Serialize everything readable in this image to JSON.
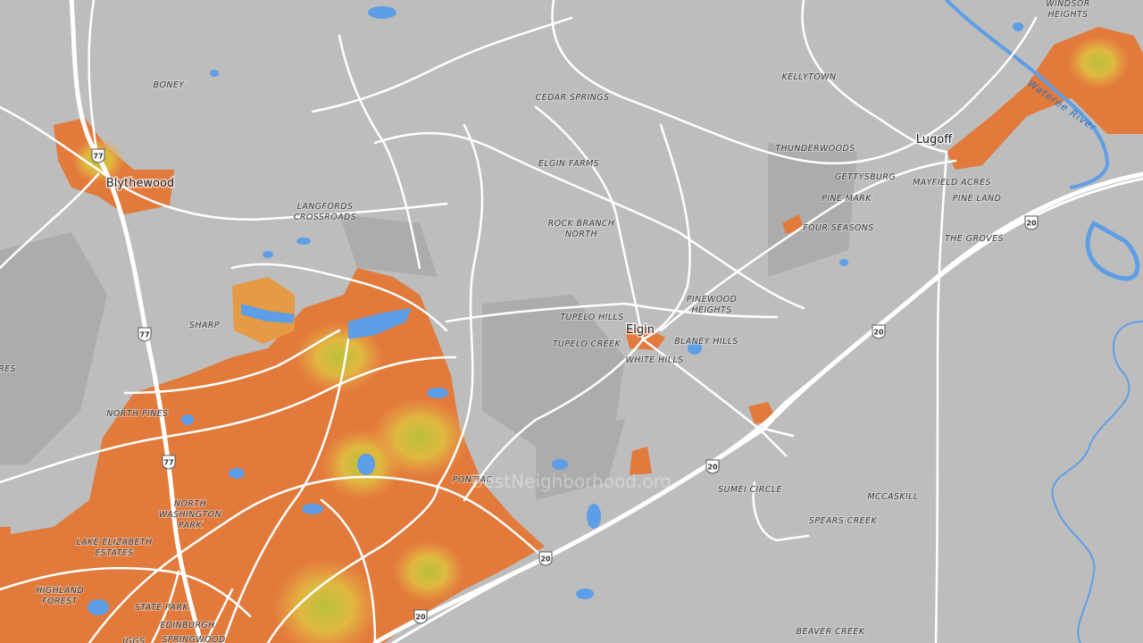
{
  "places": [
    [
      "BONEY"
    ],
    [
      "LANGFORDS",
      "CROSSROADS"
    ],
    [
      "CEDAR SPRINGS"
    ],
    [
      "ELGIN FARMS"
    ],
    [
      "ROCK BRANCH",
      "NORTH"
    ],
    [
      "KELLYTOWN"
    ],
    [
      "THUNDERWOODS"
    ],
    [
      "GETTYSBURG"
    ],
    [
      "MAYFIELD ACRES"
    ],
    [
      "PINE MARK"
    ],
    [
      "PINE LAND"
    ],
    [
      "FOUR SEASONS"
    ],
    [
      "THE GROVES"
    ],
    [
      "WINDSOR",
      "HEIGHTS"
    ],
    [
      "SHARP"
    ],
    [
      "RES"
    ],
    [
      "NORTH PINES"
    ],
    [
      "PINEWOOD",
      "HEIGHTS"
    ],
    [
      "TUPELO HILLS"
    ],
    [
      "TUPELO CREEK"
    ],
    [
      "BLANEY HILLS"
    ],
    [
      "WHITE HILLS"
    ],
    [
      "PONTIAC"
    ],
    [
      "SUMEI CIRCLE"
    ],
    [
      "MCCASKILL"
    ],
    [
      "SPEARS CREEK"
    ],
    [
      "NORTH",
      "WASHINGTON",
      "PARK"
    ],
    [
      "LAKE ELIZABETH",
      "ESTATES"
    ],
    [
      "HIGHLAND",
      "FOREST"
    ],
    [
      "STATE PARK"
    ],
    [
      "EDINBURGH"
    ],
    [
      "SPRINGWOOD"
    ],
    [
      "IGGS"
    ],
    [
      "BEAVER CREEK"
    ]
  ],
  "towns": [
    "Blythewood",
    "Lugoff",
    "Elgin"
  ],
  "shields": [
    "77",
    "77",
    "77",
    "20",
    "20",
    "20",
    "20",
    "20"
  ],
  "river_label": "Wateree River",
  "watermark": "BestNeighborhood.org"
}
